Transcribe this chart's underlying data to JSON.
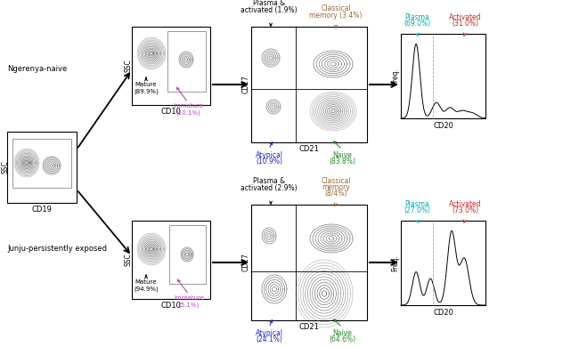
{
  "bg_color": "#ffffff",
  "fig_width": 6.5,
  "fig_height": 3.9,
  "row1_label": "Ngerenya-naive",
  "row2_label": "Junju-persistently exposed",
  "row1": {
    "mature_pct": "89.9%",
    "immature_pct": "10.1%",
    "plasma_activated_pct": "1.9%",
    "classical_memory_pct": "3.4%",
    "atypical_pct": "10.9%",
    "naive_pct": "83.8%",
    "plasma_cd20_pct": "69.0%",
    "activated_cd20_pct": "31.0%"
  },
  "row2": {
    "mature_pct": "94.9%",
    "immature_pct": "5.1%",
    "plasma_activated_pct": "2.9%",
    "classical_memory_pct_line1": "Classical",
    "classical_memory_pct_line2": "memory",
    "classical_memory_pct_line3": "(8/4%)",
    "atypical_pct": "24.1%",
    "naive_pct": "64.6%",
    "plasma_cd20_pct": "27.0%",
    "activated_cd20_pct": "73.0%"
  },
  "color_mature": "#000000",
  "color_immature": "#bb44bb",
  "color_plasma_activated": "#000000",
  "color_classical_memory": "#996633",
  "color_atypical": "#2222cc",
  "color_naive": "#228822",
  "color_plasma_cd20": "#00aaaa",
  "color_activated_cd20": "#cc2222",
  "contour_color": "#444444",
  "arrow_color": "#000000"
}
